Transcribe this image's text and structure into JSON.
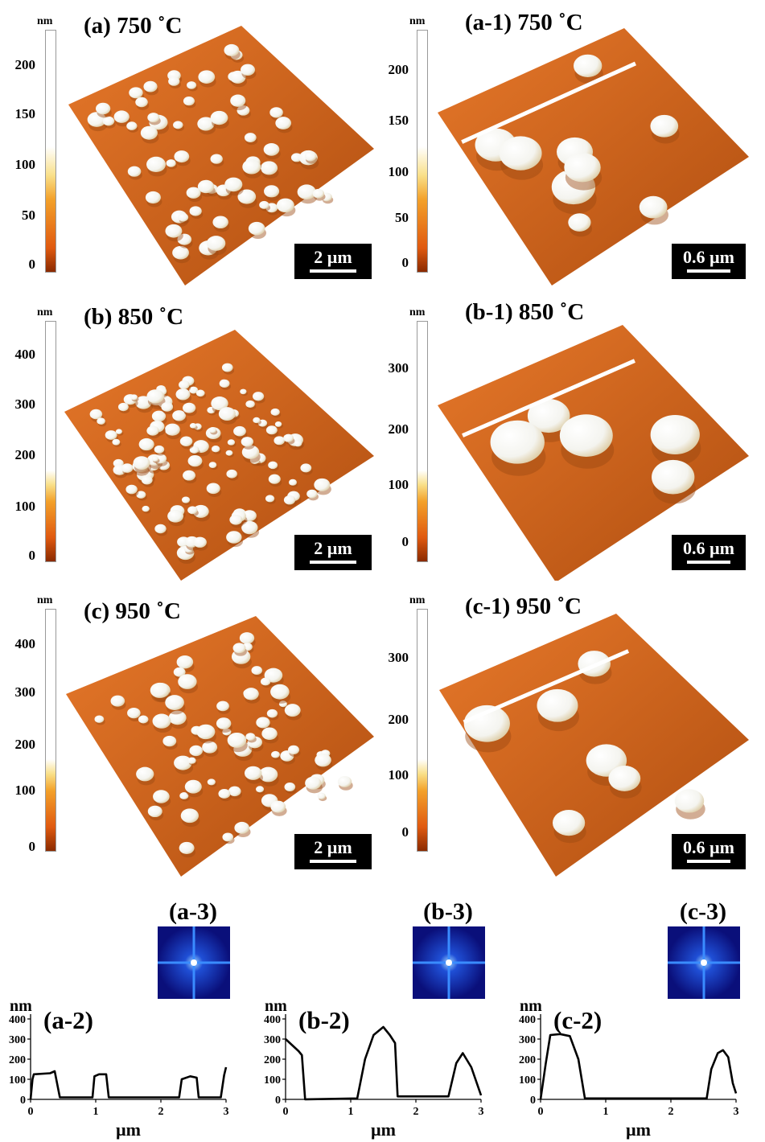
{
  "afm_panels": [
    {
      "id": "a",
      "title": "(a) 750 ˚C",
      "unit": "nm",
      "ticks": [
        "0",
        "50",
        "100",
        "150",
        "200"
      ],
      "scale_bar": "2 µm"
    },
    {
      "id": "a1",
      "title": "(a-1) 750 ˚C",
      "unit": "nm",
      "ticks": [
        "0",
        "50",
        "100",
        "150",
        "200"
      ],
      "scale_bar": "0.6 µm"
    },
    {
      "id": "b",
      "title": "(b) 850 ˚C",
      "unit": "nm",
      "ticks": [
        "0",
        "100",
        "200",
        "300",
        "400"
      ],
      "scale_bar": "2 µm"
    },
    {
      "id": "b1",
      "title": "(b-1) 850 ˚C",
      "unit": "nm",
      "ticks": [
        "0",
        "100",
        "200",
        "300"
      ],
      "scale_bar": "0.6 µm"
    },
    {
      "id": "c",
      "title": "(c) 950 ˚C",
      "unit": "nm",
      "ticks": [
        "0",
        "100",
        "200",
        "300",
        "400"
      ],
      "scale_bar": "2 µm"
    },
    {
      "id": "c1",
      "title": "(c-1) 950 ˚C",
      "unit": "nm",
      "ticks": [
        "0",
        "100",
        "200",
        "300"
      ],
      "scale_bar": "0.6 µm"
    }
  ],
  "colors": {
    "surface": "#d9691b",
    "surface_dark": "#b04e10",
    "particle": "#f4f4ef",
    "fft_bg": "#0a0f7a",
    "fft_line": "#3a8cff"
  },
  "chart_data": [
    {
      "type": "line",
      "label": "(a-2)",
      "fft_label": "(a-3)",
      "ylabel": "nm",
      "xlabel": "µm",
      "xlim": [
        0,
        3
      ],
      "ylim": [
        0,
        400
      ],
      "xticks": [
        "0",
        "1",
        "2",
        "3"
      ],
      "yticks": [
        "0",
        "100",
        "200",
        "300",
        "400"
      ],
      "series": [
        {
          "x": [
            0,
            0.03,
            0.05,
            0.3,
            0.37,
            0.45,
            0.95,
            0.98,
            1.05,
            1.16,
            1.2,
            2.28,
            2.32,
            2.45,
            2.55,
            2.58,
            2.92,
            2.97,
            3.0
          ],
          "y": [
            0,
            100,
            125,
            130,
            140,
            10,
            10,
            115,
            125,
            125,
            10,
            10,
            100,
            115,
            108,
            10,
            10,
            120,
            160
          ]
        }
      ]
    },
    {
      "type": "line",
      "label": "(b-2)",
      "fft_label": "(b-3)",
      "ylabel": "nm",
      "xlabel": "µm",
      "xlim": [
        0,
        3
      ],
      "ylim": [
        0,
        400
      ],
      "xticks": [
        "0",
        "1",
        "2",
        "3"
      ],
      "yticks": [
        "0",
        "100",
        "200",
        "300",
        "400"
      ],
      "series": [
        {
          "x": [
            0,
            0.2,
            0.25,
            0.3,
            1.1,
            1.22,
            1.35,
            1.5,
            1.6,
            1.68,
            1.72,
            2.5,
            2.62,
            2.72,
            2.85,
            3.0
          ],
          "y": [
            300,
            240,
            220,
            0,
            5,
            200,
            320,
            360,
            320,
            280,
            15,
            15,
            180,
            230,
            160,
            20
          ]
        }
      ]
    },
    {
      "type": "line",
      "label": "(c-2)",
      "fft_label": "(c-3)",
      "ylabel": "nm",
      "xlabel": "µm",
      "xlim": [
        0,
        3
      ],
      "ylim": [
        0,
        400
      ],
      "xticks": [
        "0",
        "1",
        "2",
        "3"
      ],
      "yticks": [
        "0",
        "100",
        "200",
        "300",
        "400"
      ],
      "series": [
        {
          "x": [
            0,
            0.08,
            0.15,
            0.3,
            0.45,
            0.58,
            0.68,
            2.55,
            2.62,
            2.72,
            2.8,
            2.88,
            2.95,
            3.0
          ],
          "y": [
            0,
            180,
            320,
            325,
            315,
            200,
            5,
            5,
            150,
            230,
            245,
            210,
            80,
            30
          ]
        }
      ]
    }
  ]
}
